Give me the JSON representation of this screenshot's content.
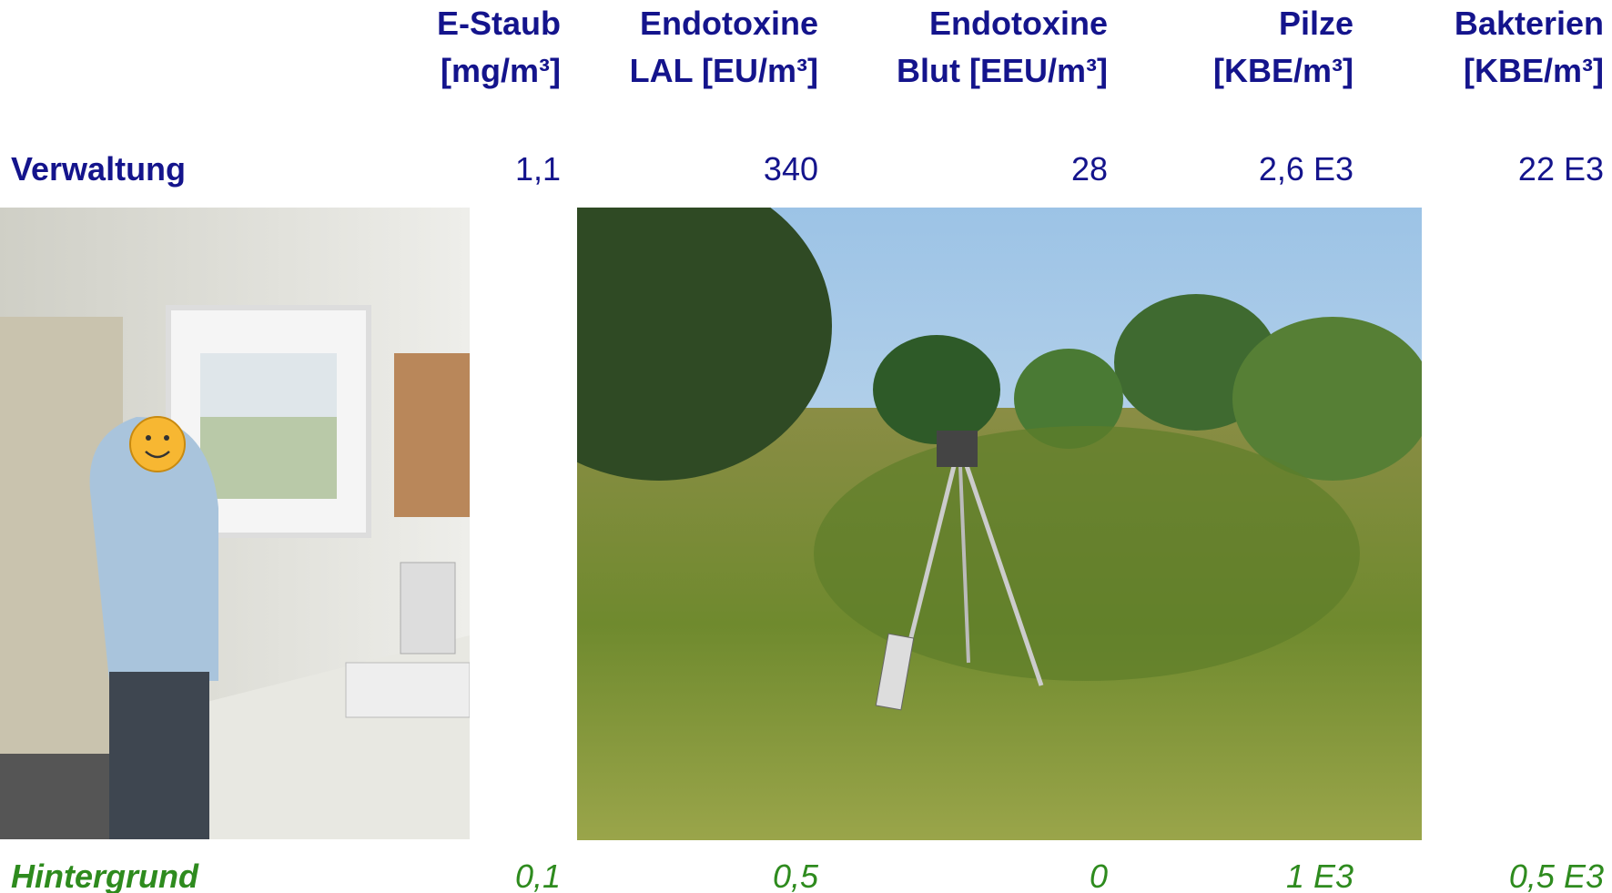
{
  "table": {
    "columns": [
      {
        "line1": "E-Staub",
        "line2": "[mg/m³]"
      },
      {
        "line1": "Endotoxine",
        "line2": "LAL [EU/m³]"
      },
      {
        "line1": "Endotoxine",
        "line2": "Blut [EEU/m³]"
      },
      {
        "line1": "Pilze",
        "line2": "[KBE/m³]"
      },
      {
        "line1": "Bakterien",
        "line2": "[KBE/m³]"
      }
    ],
    "rows": [
      {
        "label": "Verwaltung",
        "values": [
          "1,1",
          "340",
          "28",
          "2,6 E3",
          "22 E3"
        ]
      },
      {
        "label": "Hintergrund",
        "values": [
          "0,1",
          "0,5",
          "0",
          "1 E3",
          "0,5 E3"
        ]
      }
    ]
  }
}
